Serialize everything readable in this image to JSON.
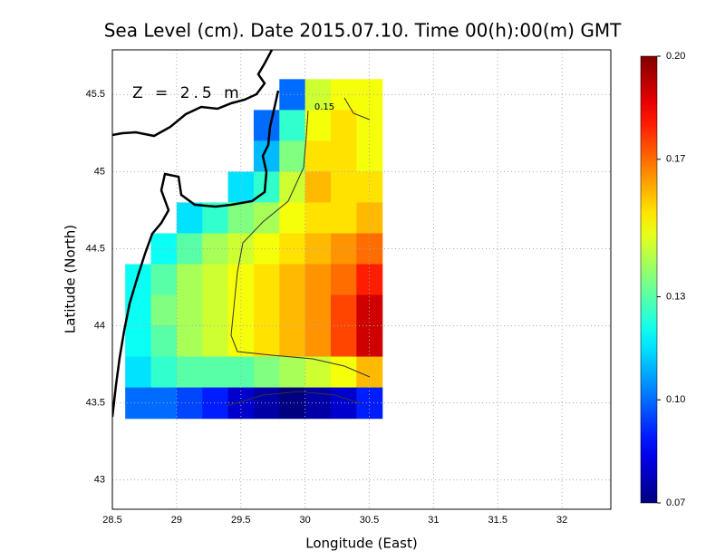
{
  "chart_data": {
    "type": "heatmap",
    "title": "Sea Level (cm). Date 2015.07.10. Time 00(h):00(m) GMT",
    "x_label": "Longitude (East)",
    "y_label": "Latitude (North)",
    "annotation": "Z = 2.5 m",
    "contour_label": "0.15",
    "xlim": [
      28.5,
      32.38
    ],
    "ylim": [
      42.81,
      45.79
    ],
    "xticks": [
      28.5,
      29,
      29.5,
      30,
      30.5,
      31,
      31.5,
      32
    ],
    "yticks": [
      43,
      43.5,
      44,
      44.5,
      45,
      45.5
    ],
    "grid": true,
    "colormap": "jet",
    "clim": [
      0.07,
      0.2
    ],
    "cticks": [
      0.07,
      {
        "value": 0.1,
        "label": "0.10"
      },
      0.13,
      0.17,
      {
        "value": 0.2,
        "label": "0.20"
      }
    ],
    "lon": [
      28.7,
      28.9,
      29.1,
      29.3,
      29.5,
      29.7,
      29.9,
      30.1,
      30.3,
      30.5
    ],
    "lat": [
      45.5,
      45.3,
      45.1,
      44.9,
      44.7,
      44.5,
      44.3,
      44.1,
      43.9,
      43.7,
      43.5
    ],
    "values": [
      [
        null,
        null,
        null,
        null,
        null,
        null,
        0.1,
        0.145,
        0.15,
        0.15
      ],
      [
        null,
        null,
        null,
        null,
        null,
        0.1,
        0.125,
        0.15,
        0.155,
        0.15
      ],
      [
        null,
        null,
        null,
        null,
        null,
        0.11,
        0.135,
        0.155,
        0.155,
        0.15
      ],
      [
        null,
        null,
        null,
        null,
        0.115,
        0.125,
        0.145,
        0.16,
        0.155,
        0.155
      ],
      [
        null,
        null,
        0.115,
        0.125,
        0.135,
        0.14,
        0.15,
        0.155,
        0.155,
        0.16
      ],
      [
        null,
        0.12,
        0.13,
        0.14,
        0.145,
        0.15,
        0.155,
        0.16,
        0.165,
        0.17
      ],
      [
        0.12,
        0.13,
        0.14,
        0.145,
        0.15,
        0.155,
        0.16,
        0.165,
        0.17,
        0.18
      ],
      [
        0.12,
        0.135,
        0.14,
        0.145,
        0.15,
        0.155,
        0.16,
        0.165,
        0.175,
        0.19
      ],
      [
        0.12,
        0.13,
        0.14,
        0.145,
        0.15,
        0.155,
        0.16,
        0.165,
        0.175,
        0.19
      ],
      [
        0.115,
        0.125,
        0.13,
        0.13,
        0.13,
        0.135,
        0.14,
        0.145,
        0.15,
        0.16
      ],
      [
        0.1,
        0.1,
        0.095,
        0.09,
        0.08,
        0.075,
        0.07,
        0.075,
        0.08,
        0.09
      ]
    ]
  }
}
